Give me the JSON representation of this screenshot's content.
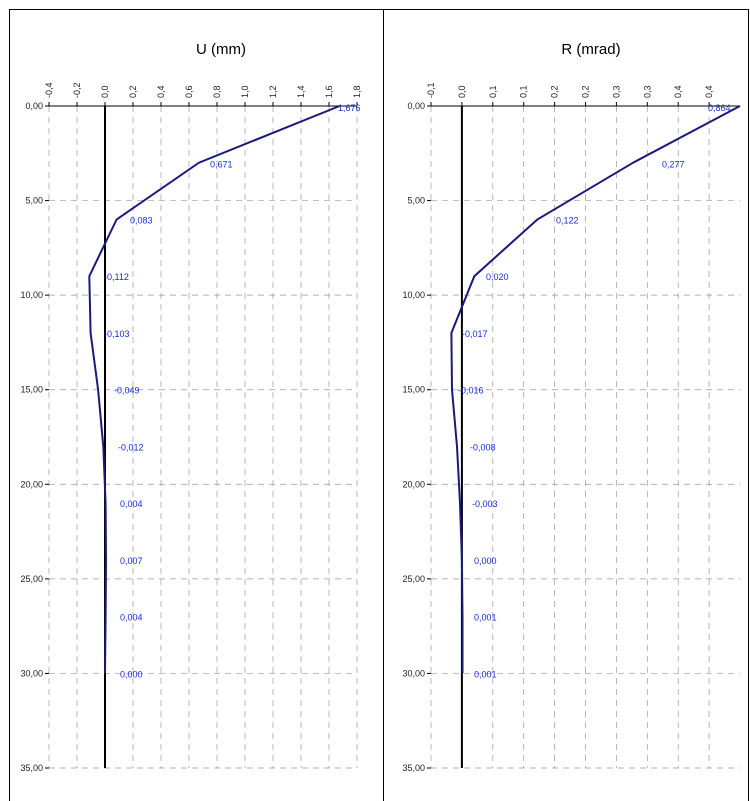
{
  "chart_data": [
    {
      "type": "line",
      "title": "U (mm)",
      "x_ticks": [
        "-0,4",
        "-0,2",
        "0,0",
        "0,2",
        "0,4",
        "0,6",
        "0,8",
        "1,0",
        "1,2",
        "1,4",
        "1,6",
        "1,8"
      ],
      "y_ticks": [
        "0,00",
        "5,00",
        "10,00",
        "15,00",
        "20,00",
        "25,00",
        "30,00",
        "35,00"
      ],
      "xlim": [
        -0.4,
        1.8
      ],
      "ylim": [
        0,
        35
      ],
      "y_inverted": true,
      "grid": true,
      "series": [
        {
          "points": [
            {
              "x": 1.676,
              "y": 0
            },
            {
              "x": 0.671,
              "y": 3
            },
            {
              "x": 0.083,
              "y": 6
            },
            {
              "x": -0.112,
              "y": 9
            },
            {
              "x": -0.103,
              "y": 12
            },
            {
              "x": -0.049,
              "y": 15
            },
            {
              "x": -0.012,
              "y": 18
            },
            {
              "x": 0.004,
              "y": 21
            },
            {
              "x": 0.007,
              "y": 24
            },
            {
              "x": 0.004,
              "y": 27
            },
            {
              "x": 0.0,
              "y": 30
            }
          ]
        }
      ],
      "data_labels": [
        "1,676",
        "0,671",
        "0,083",
        "-0,112",
        "-0,103",
        "-0,049",
        "-0,012",
        "0,004",
        "0,007",
        "0,004",
        "0,000"
      ]
    },
    {
      "type": "line",
      "title": "R (mrad)",
      "x_ticks": [
        "-0,1",
        "0,0",
        "0,1",
        "0,1",
        "0,2",
        "0,2",
        "0,3",
        "0,3",
        "0,4",
        "0,4"
      ],
      "y_ticks": [
        "0,00",
        "5,00",
        "10,00",
        "15,00",
        "20,00",
        "25,00",
        "30,00",
        "35,00"
      ],
      "xlim": [
        -0.05,
        0.45
      ],
      "ylim": [
        0,
        35
      ],
      "y_inverted": true,
      "grid": true,
      "series": [
        {
          "points": [
            {
              "x": 0.864,
              "y": 0
            },
            {
              "x": 0.277,
              "y": 3
            },
            {
              "x": 0.122,
              "y": 6
            },
            {
              "x": 0.02,
              "y": 9
            },
            {
              "x": -0.017,
              "y": 12
            },
            {
              "x": -0.016,
              "y": 15
            },
            {
              "x": -0.008,
              "y": 18
            },
            {
              "x": -0.003,
              "y": 21
            },
            {
              "x": 0.0,
              "y": 24
            },
            {
              "x": 0.001,
              "y": 27
            },
            {
              "x": 0.001,
              "y": 30
            }
          ]
        }
      ],
      "data_labels": [
        "0,864",
        "0,277",
        "0,122",
        "0,020",
        "-0,017",
        "-0,016",
        "-0,008",
        "-0,003",
        "0,000",
        "0,001",
        "0,001"
      ]
    }
  ]
}
